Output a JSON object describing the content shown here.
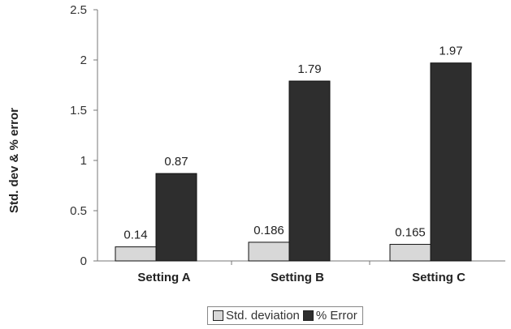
{
  "chart_data": {
    "type": "bar",
    "categories": [
      "Setting A",
      "Setting B",
      "Setting C"
    ],
    "series": [
      {
        "name": "Std. deviation",
        "values": [
          0.14,
          0.186,
          0.165
        ],
        "labels": [
          "0.14",
          "0.186",
          "0.165"
        ],
        "color": "#d8d8d8"
      },
      {
        "name": "% Error",
        "values": [
          0.87,
          1.79,
          1.97
        ],
        "labels": [
          "0.87",
          "1.79",
          "1.97"
        ],
        "color": "#2e2e2e"
      }
    ],
    "ylabel": "Std. dev & % error",
    "ylim": [
      0,
      2.5
    ],
    "yticks": [
      0,
      0.5,
      1,
      1.5,
      2,
      2.5
    ],
    "ytick_labels": [
      "0",
      "0.5",
      "1",
      "1.5",
      "2",
      "2.5"
    ],
    "grid": false,
    "legend_position": "bottom"
  }
}
